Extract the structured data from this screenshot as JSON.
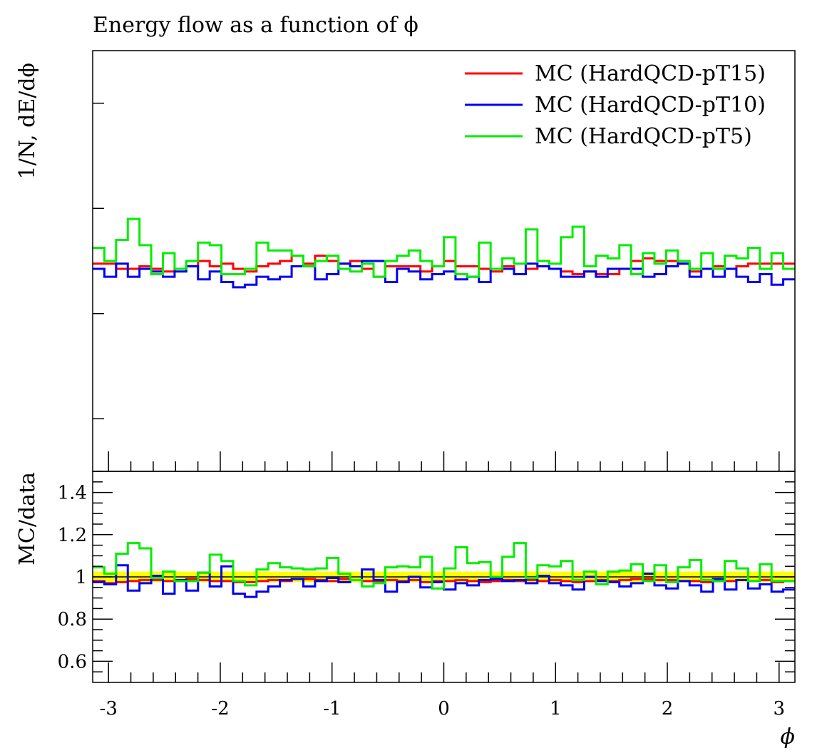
{
  "chart_data": {
    "type": "line",
    "title": "Energy flow as a function of ϕ",
    "xlabel": "ϕ",
    "ylabel": "1/N, dE/dϕ",
    "ratio_ylabel": "MC/data",
    "xlim": [
      -3.1416,
      3.1416
    ],
    "x_tick_labels": [
      "-3",
      "-2",
      "-1",
      "0",
      "1",
      "2",
      "3"
    ],
    "x_ticks": [
      -3,
      -2,
      -1,
      0,
      1,
      2,
      3
    ],
    "main_ylim": [
      0.6,
      1.4
    ],
    "ratio_ylim": [
      0.5,
      1.5
    ],
    "ratio_tick_labels": [
      "0.6",
      "0.8",
      "1",
      "1.2",
      "1.4"
    ],
    "ratio_ticks": [
      0.6,
      0.8,
      1.0,
      1.2,
      1.4
    ],
    "reference_band": [
      0.975,
      1.025
    ],
    "reference_band_color": "#ffff00",
    "legend_position": "top-right",
    "nbins": 60,
    "series": [
      {
        "name": "MC (HardQCD-pT15)",
        "color": "#ff0000",
        "values": [
          0.995,
          0.995,
          0.985,
          0.985,
          0.99,
          0.985,
          0.98,
          0.985,
          0.99,
          1.0,
          0.99,
          0.995,
          0.985,
          0.98,
          0.99,
          0.995,
          1.0,
          1.01,
          0.995,
          1.01,
          1.0,
          0.995,
          1.0,
          0.985,
          0.97,
          0.99,
          0.99,
          0.99,
          0.98,
          0.99,
          1.0,
          0.99,
          0.99,
          0.985,
          0.98,
          0.99,
          0.975,
          0.985,
          0.99,
          0.985,
          0.98,
          0.975,
          0.98,
          0.975,
          0.975,
          0.985,
          1.0,
          1.005,
          1.0,
          1.0,
          0.995,
          0.98,
          0.985,
          0.99,
          0.985,
          0.99,
          0.995,
          0.995,
          0.995,
          0.995
        ]
      },
      {
        "name": "MC (HardQCD-pT10)",
        "color": "#0000ee",
        "values": [
          0.985,
          0.97,
          0.995,
          0.97,
          0.985,
          0.98,
          0.97,
          0.98,
          0.99,
          0.965,
          0.98,
          0.96,
          0.95,
          0.955,
          0.97,
          0.965,
          0.97,
          0.99,
          0.99,
          0.965,
          0.975,
          0.995,
          0.99,
          1.0,
          1.0,
          0.96,
          0.985,
          0.98,
          0.965,
          0.975,
          0.98,
          0.965,
          0.97,
          0.96,
          0.985,
          0.985,
          0.975,
          0.995,
          0.99,
          0.985,
          0.97,
          0.97,
          0.98,
          0.97,
          0.985,
          0.985,
          0.985,
          0.97,
          0.975,
          0.99,
          0.995,
          0.97,
          0.985,
          0.97,
          0.985,
          0.97,
          0.96,
          0.975,
          0.955,
          0.965
        ]
      },
      {
        "name": "MC (HardQCD-pT5)",
        "color": "#00ee00",
        "values": [
          1.025,
          1.0,
          1.04,
          1.08,
          1.03,
          0.975,
          1.015,
          0.985,
          1.0,
          1.035,
          1.03,
          0.975,
          0.975,
          0.985,
          1.035,
          1.02,
          1.02,
          1.01,
          0.99,
          1.0,
          1.01,
          0.985,
          0.98,
          0.995,
          0.97,
          1.0,
          1.01,
          1.02,
          1.0,
          0.99,
          1.045,
          0.975,
          0.97,
          1.035,
          0.985,
          1.005,
          0.995,
          1.06,
          1.0,
          0.995,
          1.045,
          1.065,
          0.99,
          1.01,
          1.005,
          1.03,
          0.975,
          1.015,
          0.995,
          1.02,
          1.0,
          0.985,
          1.015,
          0.985,
          1.01,
          1.005,
          1.025,
          0.985,
          1.015,
          0.985
        ]
      }
    ],
    "ratio_series": [
      {
        "name": "MC (HardQCD-pT15)",
        "color": "#ff0000",
        "values": [
          0.98,
          0.97,
          0.975,
          0.98,
          0.985,
          0.985,
          0.98,
          0.98,
          0.99,
          0.985,
          0.98,
          0.98,
          0.975,
          0.975,
          0.98,
          0.985,
          0.98,
          0.99,
          0.99,
          0.985,
          0.98,
          0.99,
          0.985,
          0.98,
          0.98,
          0.985,
          0.98,
          0.985,
          0.975,
          0.98,
          0.98,
          0.985,
          0.98,
          0.975,
          0.98,
          0.985,
          0.98,
          0.985,
          0.98,
          0.985,
          0.98,
          0.975,
          0.98,
          0.985,
          0.98,
          0.985,
          0.99,
          0.99,
          0.985,
          0.985,
          0.98,
          0.98,
          0.975,
          0.98,
          0.98,
          0.985,
          0.98,
          0.985,
          0.975,
          0.98
        ]
      },
      {
        "name": "MC (HardQCD-pT10)",
        "color": "#0000ee",
        "values": [
          0.975,
          0.965,
          1.055,
          0.935,
          0.97,
          1.005,
          0.92,
          0.985,
          0.935,
          1.02,
          0.955,
          1.05,
          0.92,
          0.905,
          0.93,
          0.955,
          0.985,
          0.99,
          0.955,
          0.98,
          0.995,
          0.975,
          0.985,
          1.035,
          0.985,
          0.93,
          0.975,
          1.0,
          0.95,
          0.975,
          0.94,
          0.97,
          0.96,
          0.985,
          0.99,
          0.98,
          0.985,
          0.97,
          1.005,
          0.97,
          0.96,
          0.94,
          1.0,
          0.98,
          0.975,
          0.955,
          0.97,
          1.015,
          0.96,
          0.945,
          0.98,
          0.96,
          0.93,
          0.99,
          0.94,
          0.985,
          0.945,
          0.965,
          0.93,
          0.94
        ]
      },
      {
        "name": "MC (HardQCD-pT5)",
        "color": "#00ee00",
        "values": [
          1.045,
          1.015,
          1.11,
          1.16,
          1.135,
          0.995,
          1.025,
          0.98,
          0.98,
          1.02,
          1.105,
          1.075,
          0.98,
          0.96,
          1.035,
          1.065,
          1.045,
          1.04,
          1.035,
          1.04,
          1.09,
          1.015,
          0.985,
          0.955,
          0.97,
          1.045,
          1.05,
          1.045,
          1.095,
          0.945,
          1.04,
          1.14,
          1.065,
          1.07,
          1.0,
          1.095,
          1.16,
          0.995,
          1.055,
          1.05,
          1.075,
          0.985,
          1.025,
          0.965,
          1.025,
          1.03,
          1.06,
          0.98,
          1.055,
          0.975,
          1.045,
          1.08,
          0.985,
          0.98,
          1.075,
          1.04,
          0.98,
          1.06,
          0.98,
          0.98
        ]
      }
    ]
  }
}
